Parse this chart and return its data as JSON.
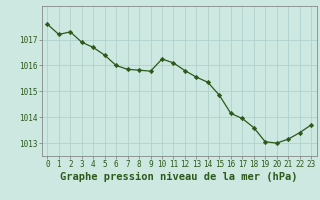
{
  "x": [
    0,
    1,
    2,
    3,
    4,
    5,
    6,
    7,
    8,
    9,
    10,
    11,
    12,
    13,
    14,
    15,
    16,
    17,
    18,
    19,
    20,
    21,
    22,
    23
  ],
  "y": [
    1017.6,
    1017.2,
    1017.3,
    1016.9,
    1016.7,
    1016.4,
    1016.0,
    1015.85,
    1015.82,
    1015.78,
    1016.25,
    1016.1,
    1015.8,
    1015.55,
    1015.35,
    1014.85,
    1014.15,
    1013.95,
    1013.6,
    1013.05,
    1013.0,
    1013.15,
    1013.4,
    1013.7
  ],
  "line_color": "#2d5a1b",
  "marker_color": "#2d5a1b",
  "bg_color": "#cce8e0",
  "grid_color": "#aacec8",
  "axis_color": "#2d5a1b",
  "xlabel": "Graphe pression niveau de la mer (hPa)",
  "ylim_min": 1012.5,
  "ylim_max": 1018.3,
  "yticks": [
    1013,
    1014,
    1015,
    1016,
    1017
  ],
  "xticks": [
    0,
    1,
    2,
    3,
    4,
    5,
    6,
    7,
    8,
    9,
    10,
    11,
    12,
    13,
    14,
    15,
    16,
    17,
    18,
    19,
    20,
    21,
    22,
    23
  ],
  "tick_fontsize": 5.5,
  "xlabel_fontsize": 7.5
}
